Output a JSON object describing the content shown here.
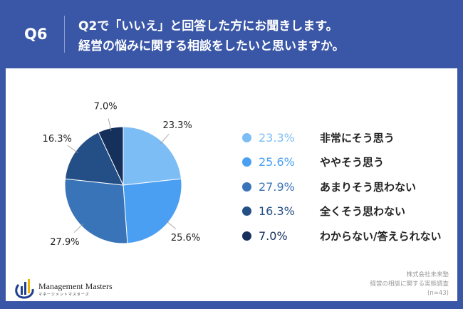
{
  "header": {
    "question_no": "Q6",
    "title_line1": "Q2で「いいえ」と回答した方にお聞きします。",
    "title_line2": "経営の悩みに関する相談をしたいと思いますか。"
  },
  "chart_data": {
    "type": "pie",
    "start": "12 o'clock, clockwise",
    "slices": [
      {
        "label": "非常にそう思う",
        "value": 23.3,
        "display": "23.3%",
        "color": "#7dbdf5"
      },
      {
        "label": "ややそう思う",
        "value": 25.6,
        "display": "25.6%",
        "color": "#4b9ff3"
      },
      {
        "label": "あまりそう思わない",
        "value": 27.9,
        "display": "27.9%",
        "color": "#3a74b8"
      },
      {
        "label": "全くそう思わない",
        "value": 16.3,
        "display": "16.3%",
        "color": "#244f86"
      },
      {
        "label": "わからない/答えられない",
        "value": 7.0,
        "display": "7.0%",
        "color": "#16305c"
      }
    ],
    "legend": "right"
  },
  "footer": {
    "company": "株式会社未来塾",
    "survey": "経営の相談に関する実態調査",
    "n": "(n=43)"
  },
  "logo": {
    "name": "Management Masters",
    "kana": "マネージメントマスターズ"
  }
}
